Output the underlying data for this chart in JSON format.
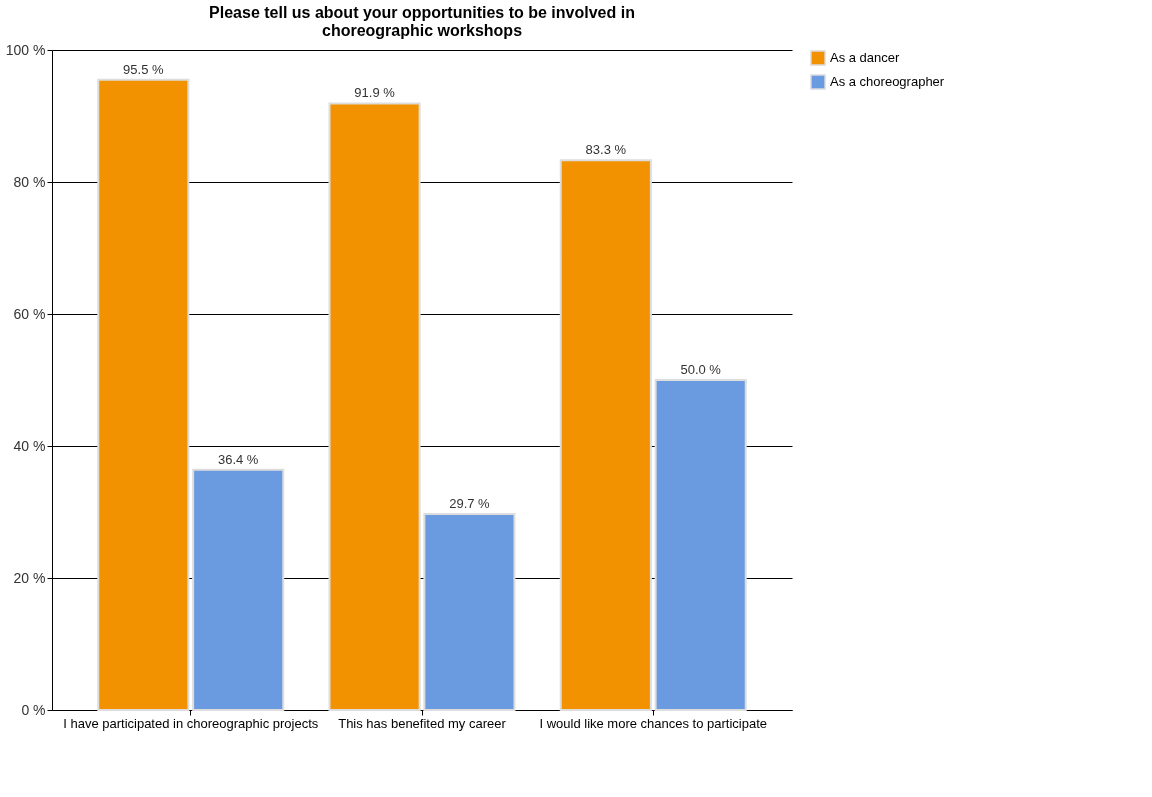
{
  "chart_data": {
    "type": "bar",
    "title": "Please tell us about your opportunities to be involved in choreographic workshops",
    "categories": [
      "I have participated in choreographic projects",
      "This has benefited my career",
      "I would like more chances to participate"
    ],
    "series": [
      {
        "name": "As a dancer",
        "color": "#f39200",
        "values": [
          95.5,
          91.9,
          83.3
        ],
        "value_labels": [
          "95.5 %",
          "91.9 %",
          "83.3 %"
        ]
      },
      {
        "name": "As a choreographer",
        "color": "#6a9be0",
        "values": [
          36.4,
          29.7,
          50.0
        ],
        "value_labels": [
          "36.4 %",
          "29.7 %",
          "50.0 %"
        ]
      }
    ],
    "ylim": [
      0,
      100
    ],
    "yticks": [
      {
        "value": 0,
        "label": "0 %"
      },
      {
        "value": 20,
        "label": "20 %"
      },
      {
        "value": 40,
        "label": "40 %"
      },
      {
        "value": 60,
        "label": "60 %"
      },
      {
        "value": 80,
        "label": "80 %"
      },
      {
        "value": 100,
        "label": "100 %"
      }
    ],
    "grid": "y",
    "legend": "right"
  }
}
